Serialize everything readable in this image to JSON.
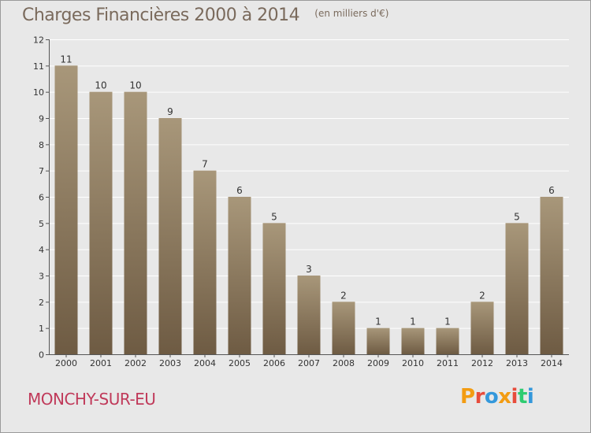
{
  "header": {
    "title": "Charges Financières 2000 à 2014",
    "subtitle": "(en milliers d'€)"
  },
  "footer": {
    "commune": "MONCHY-SUR-EU",
    "brand_letters": [
      "P",
      "r",
      "o",
      "x",
      "i",
      "t",
      "i"
    ],
    "brand_colors": [
      "#f39c12",
      "#e74c3c",
      "#3498db",
      "#f39c12",
      "#e74c3c",
      "#2ecc71",
      "#3498db"
    ]
  },
  "colors": {
    "bar_top": "#a8977a",
    "bar_bottom": "#6e5b43",
    "title": "#7a6a5c",
    "commune": "#c03a5a",
    "grid": "#ffffff",
    "background": "#e8e8e8"
  },
  "chart_data": {
    "type": "bar",
    "title": "Charges Financières 2000 à 2014",
    "subtitle": "(en milliers d'€)",
    "xlabel": "",
    "ylabel": "",
    "categories": [
      "2000",
      "2001",
      "2002",
      "2003",
      "2004",
      "2005",
      "2006",
      "2007",
      "2008",
      "2009",
      "2010",
      "2011",
      "2012",
      "2013",
      "2014"
    ],
    "values": [
      11,
      10,
      10,
      9,
      7,
      6,
      5,
      3,
      2,
      1,
      1,
      1,
      2,
      5,
      6
    ],
    "ylim": [
      0,
      12
    ],
    "yticks": [
      0,
      1,
      2,
      3,
      4,
      5,
      6,
      7,
      8,
      9,
      10,
      11,
      12
    ],
    "grid": true
  }
}
